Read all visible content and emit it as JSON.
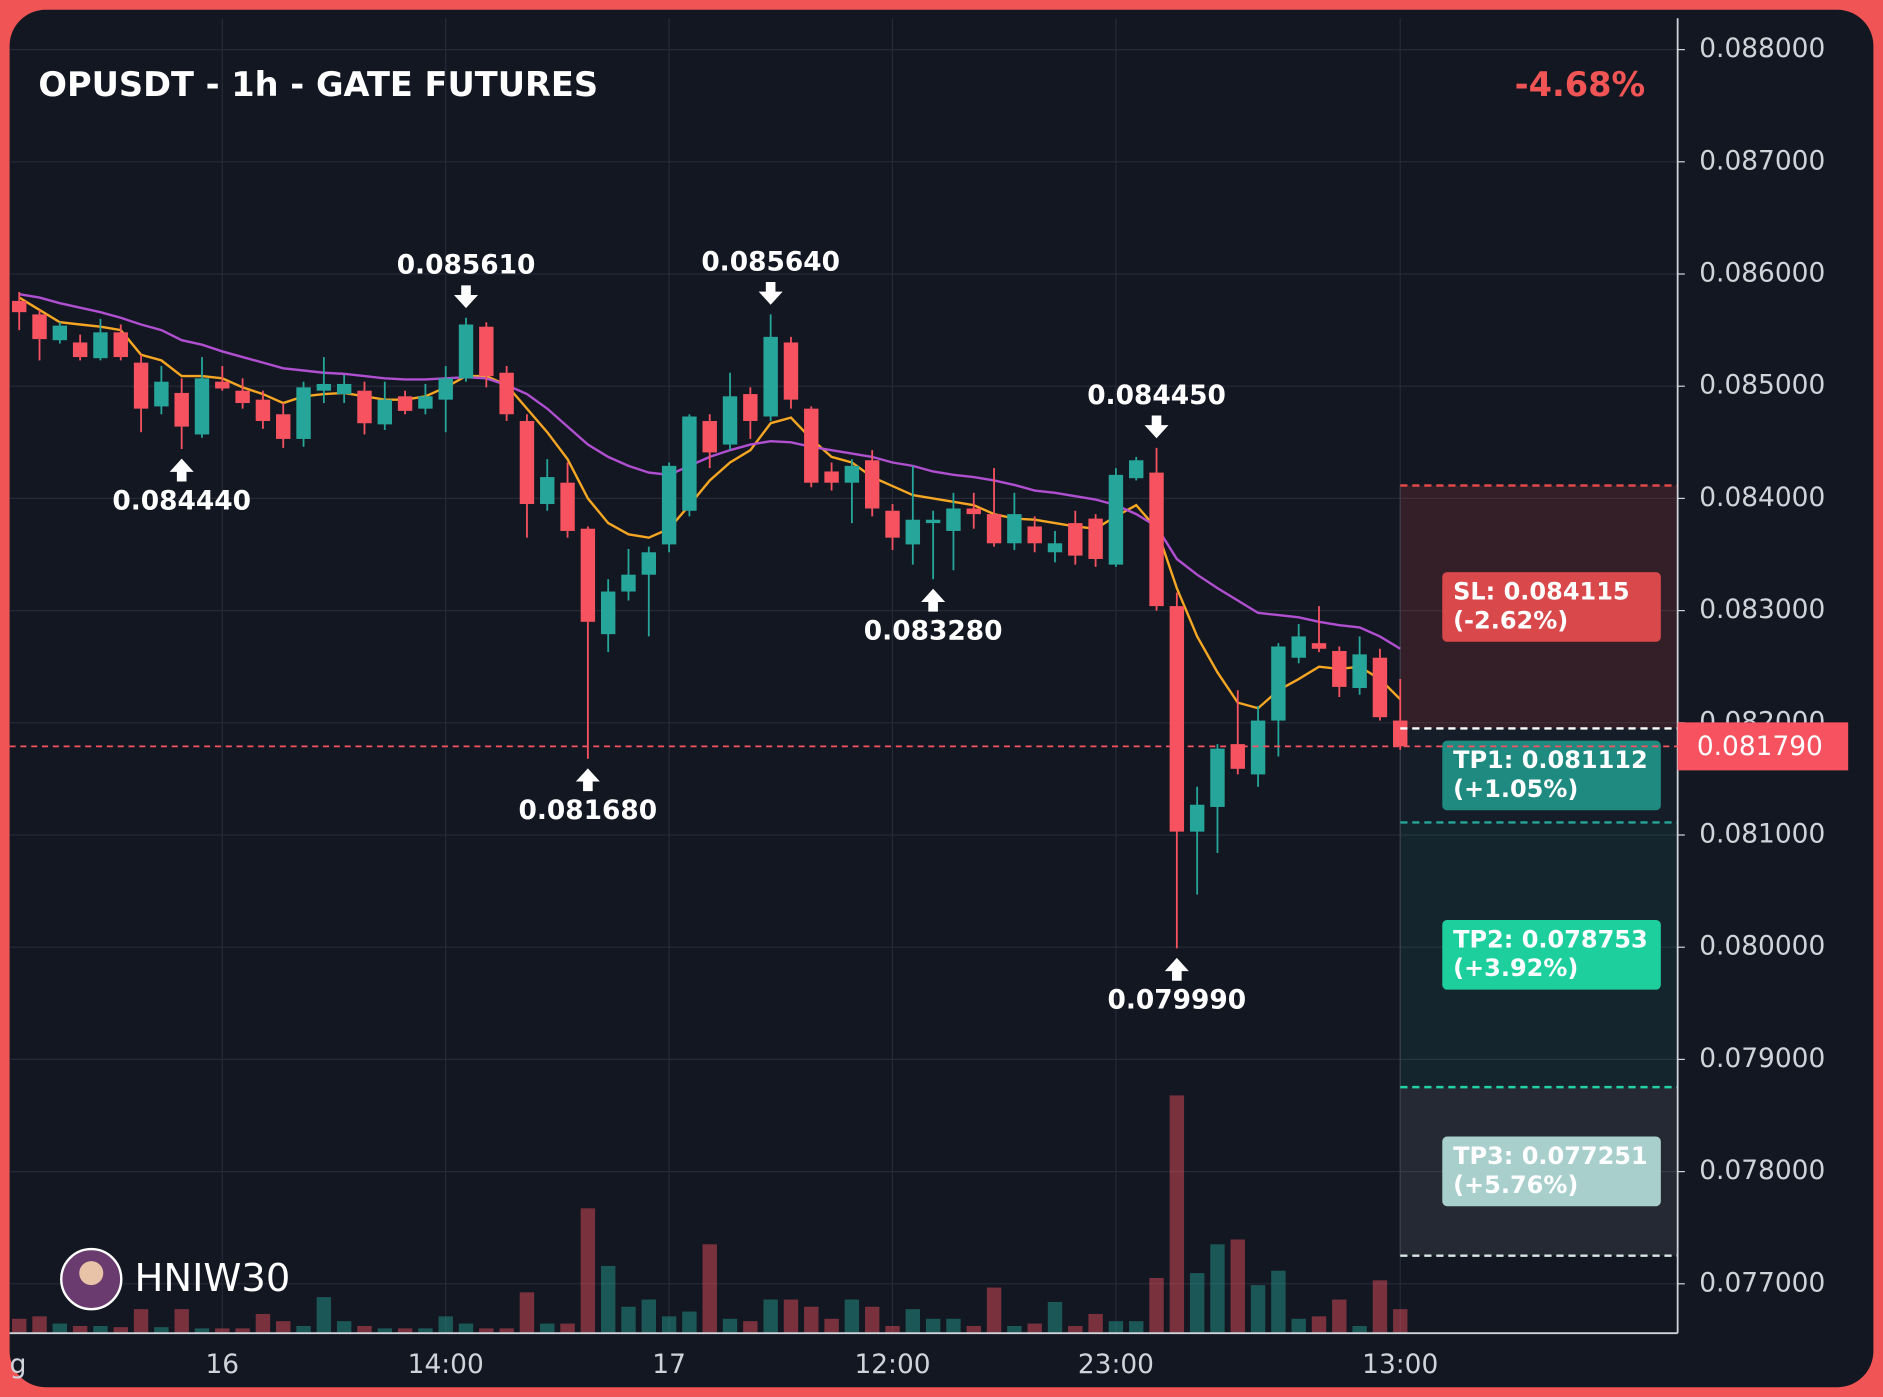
{
  "chart_data": {
    "type": "candlestick",
    "title": "OPUSDT - 1h - GATE FUTURES",
    "change_label": "-4.68%",
    "watermark": "HNIW30",
    "categories": [
      "g",
      null,
      null,
      null,
      null,
      null,
      null,
      null,
      null,
      null,
      "16",
      null,
      null,
      null,
      null,
      null,
      null,
      null,
      null,
      null,
      null,
      "14:00",
      null,
      null,
      null,
      null,
      null,
      null,
      null,
      null,
      null,
      null,
      "17",
      null,
      null,
      null,
      null,
      null,
      null,
      null,
      null,
      null,
      null,
      "12:00",
      null,
      null,
      null,
      null,
      null,
      null,
      null,
      null,
      null,
      null,
      "23:00",
      null,
      null,
      null,
      null,
      null,
      null,
      null,
      null,
      null,
      null,
      null,
      null,
      null,
      "13:00"
    ],
    "open": [
      0.08576,
      0.08564,
      0.08541,
      0.08539,
      0.08525,
      0.08548,
      0.08521,
      0.08482,
      0.08494,
      0.08457,
      0.08504,
      0.08496,
      0.08488,
      0.08475,
      0.08453,
      0.08496,
      0.08493,
      0.08496,
      0.08466,
      0.08491,
      0.0848,
      0.08488,
      0.08507,
      0.08553,
      0.08512,
      0.08469,
      0.08395,
      0.08414,
      0.08373,
      0.08279,
      0.08317,
      0.08332,
      0.08359,
      0.08389,
      0.08469,
      0.08448,
      0.08493,
      0.08473,
      0.08539,
      0.0848,
      0.08424,
      0.08414,
      0.08434,
      0.08389,
      0.08359,
      0.08378,
      0.08371,
      0.08391,
      0.08386,
      0.0836,
      0.08375,
      0.08352,
      0.08378,
      0.08382,
      0.08341,
      0.08418,
      0.08423,
      0.08304,
      0.08103,
      0.08125,
      0.08181,
      0.08154,
      0.08202,
      0.08258,
      0.08271,
      0.08264,
      0.08231,
      0.08258,
      0.08202
    ],
    "high": [
      0.08584,
      0.08568,
      0.08557,
      0.08546,
      0.0856,
      0.08555,
      0.08528,
      0.08518,
      0.08507,
      0.08526,
      0.08518,
      0.08507,
      0.08496,
      0.08485,
      0.08504,
      0.08526,
      0.0851,
      0.08504,
      0.08504,
      0.08496,
      0.08502,
      0.08518,
      0.08561,
      0.08557,
      0.08518,
      0.08475,
      0.08435,
      0.08432,
      0.08375,
      0.08328,
      0.08355,
      0.08357,
      0.08432,
      0.08475,
      0.08475,
      0.08512,
      0.08499,
      0.08564,
      0.08544,
      0.08482,
      0.08432,
      0.08435,
      0.08443,
      0.08395,
      0.08429,
      0.08389,
      0.08405,
      0.08405,
      0.08427,
      0.08405,
      0.08384,
      0.08371,
      0.08389,
      0.08386,
      0.08427,
      0.08437,
      0.08445,
      0.08316,
      0.08143,
      0.08181,
      0.08229,
      0.08215,
      0.08271,
      0.08288,
      0.08304,
      0.08268,
      0.08277,
      0.08266,
      0.08239
    ],
    "low": [
      0.0855,
      0.08523,
      0.08538,
      0.08523,
      0.08523,
      0.08523,
      0.08459,
      0.08475,
      0.08444,
      0.08454,
      0.08496,
      0.0848,
      0.08462,
      0.08445,
      0.08446,
      0.08485,
      0.08485,
      0.08457,
      0.08461,
      0.08475,
      0.08475,
      0.08459,
      0.08504,
      0.08499,
      0.08469,
      0.08365,
      0.08389,
      0.08365,
      0.08168,
      0.08263,
      0.08309,
      0.08277,
      0.08352,
      0.08384,
      0.08427,
      0.08443,
      0.08453,
      0.08469,
      0.0848,
      0.0841,
      0.08407,
      0.08378,
      0.08384,
      0.08354,
      0.08341,
      0.08328,
      0.08336,
      0.08373,
      0.08357,
      0.08354,
      0.08352,
      0.08343,
      0.08341,
      0.08339,
      0.08339,
      0.08416,
      0.083,
      0.07999,
      0.08047,
      0.08084,
      0.08154,
      0.08143,
      0.0817,
      0.08253,
      0.08263,
      0.08223,
      0.08225,
      0.08202,
      0.08176
    ],
    "close": [
      0.08566,
      0.08542,
      0.08554,
      0.08526,
      0.08548,
      0.08526,
      0.0848,
      0.08504,
      0.08464,
      0.08507,
      0.08498,
      0.08485,
      0.08469,
      0.08453,
      0.08499,
      0.08502,
      0.08502,
      0.08467,
      0.08488,
      0.08478,
      0.08491,
      0.08507,
      0.08555,
      0.08509,
      0.08475,
      0.08395,
      0.08419,
      0.08371,
      0.0829,
      0.08317,
      0.08332,
      0.08352,
      0.08429,
      0.08473,
      0.08441,
      0.08491,
      0.08469,
      0.08544,
      0.08488,
      0.08414,
      0.08414,
      0.08429,
      0.08391,
      0.08365,
      0.08381,
      0.08381,
      0.08391,
      0.08386,
      0.0836,
      0.08386,
      0.0836,
      0.0836,
      0.08349,
      0.08346,
      0.08421,
      0.08434,
      0.08304,
      0.08103,
      0.08127,
      0.08177,
      0.08159,
      0.08202,
      0.08268,
      0.08277,
      0.08266,
      0.08232,
      0.08261,
      0.08205,
      0.08179
    ],
    "volume": [
      12,
      14,
      8,
      6,
      6,
      5,
      20,
      5,
      20,
      4,
      4,
      4,
      16,
      10,
      6,
      30,
      10,
      6,
      4,
      4,
      4,
      14,
      8,
      4,
      4,
      34,
      8,
      8,
      104,
      56,
      22,
      28,
      14,
      18,
      74,
      12,
      10,
      28,
      28,
      22,
      12,
      28,
      22,
      6,
      20,
      12,
      12,
      6,
      38,
      6,
      8,
      26,
      6,
      16,
      10,
      10,
      46,
      198,
      50,
      74,
      78,
      40,
      52,
      12,
      14,
      28,
      6,
      44,
      20
    ],
    "up_color": "#26a69a",
    "down_color": "#f7525f",
    "moving_averages": [
      {
        "color": "#f5a623",
        "values": [
          0.08579,
          0.08568,
          0.08557,
          0.08555,
          0.08553,
          0.0855,
          0.08528,
          0.08523,
          0.08509,
          0.08509,
          0.08507,
          0.08499,
          0.08493,
          0.08485,
          0.08491,
          0.08493,
          0.08494,
          0.08491,
          0.08488,
          0.08488,
          0.08491,
          0.08499,
          0.08509,
          0.08509,
          0.08501,
          0.0848,
          0.08459,
          0.08435,
          0.084,
          0.08378,
          0.08368,
          0.08365,
          0.08373,
          0.08394,
          0.08416,
          0.08432,
          0.08443,
          0.08467,
          0.08472,
          0.08453,
          0.08437,
          0.08432,
          0.08419,
          0.08411,
          0.08403,
          0.084,
          0.08397,
          0.08394,
          0.08386,
          0.08382,
          0.08381,
          0.08378,
          0.08375,
          0.08373,
          0.08384,
          0.08394,
          0.08373,
          0.0832,
          0.08277,
          0.08245,
          0.08218,
          0.08213,
          0.08229,
          0.08239,
          0.0825,
          0.08248,
          0.0825,
          0.08239,
          0.08221
        ]
      },
      {
        "color": "#b04fd0",
        "values": [
          0.08582,
          0.08579,
          0.08574,
          0.0857,
          0.08566,
          0.08561,
          0.08555,
          0.0855,
          0.08541,
          0.08537,
          0.08531,
          0.08526,
          0.08521,
          0.08516,
          0.08514,
          0.08512,
          0.08511,
          0.08509,
          0.08507,
          0.08506,
          0.08506,
          0.08507,
          0.08508,
          0.08507,
          0.08501,
          0.08493,
          0.0848,
          0.08464,
          0.08448,
          0.08437,
          0.08429,
          0.08423,
          0.08421,
          0.08429,
          0.08437,
          0.08443,
          0.08448,
          0.08451,
          0.0845,
          0.08446,
          0.08443,
          0.0844,
          0.08437,
          0.08432,
          0.08429,
          0.08424,
          0.08421,
          0.08419,
          0.08416,
          0.08412,
          0.08407,
          0.08405,
          0.08402,
          0.08399,
          0.08394,
          0.08386,
          0.08375,
          0.08346,
          0.08332,
          0.0832,
          0.08309,
          0.08298,
          0.08296,
          0.08294,
          0.0829,
          0.08287,
          0.08285,
          0.08277,
          0.08266
        ]
      }
    ],
    "ylim": [
      0.07656,
      0.08828
    ],
    "yticks": [
      {
        "value": 0.077,
        "label": "0.077000"
      },
      {
        "value": 0.078,
        "label": "0.078000"
      },
      {
        "value": 0.079,
        "label": "0.079000"
      },
      {
        "value": 0.08,
        "label": "0.080000"
      },
      {
        "value": 0.081,
        "label": "0.081000"
      },
      {
        "value": 0.082,
        "label": "0.082000"
      },
      {
        "value": 0.083,
        "label": "0.083000"
      },
      {
        "value": 0.084,
        "label": "0.084000"
      },
      {
        "value": 0.085,
        "label": "0.085000"
      },
      {
        "value": 0.086,
        "label": "0.086000"
      },
      {
        "value": 0.087,
        "label": "0.087000"
      },
      {
        "value": 0.088,
        "label": "0.088000"
      }
    ],
    "grid": true,
    "annotations": [
      {
        "candle": 22,
        "kind": "high",
        "value": 0.08561,
        "label": "0.085610"
      },
      {
        "candle": 37,
        "kind": "high",
        "value": 0.08564,
        "label": "0.085640"
      },
      {
        "candle": 56,
        "kind": "high",
        "value": 0.08445,
        "label": "0.084450"
      },
      {
        "candle": 8,
        "kind": "low",
        "value": 0.08444,
        "label": "0.084440"
      },
      {
        "candle": 28,
        "kind": "low",
        "value": 0.08168,
        "label": "0.081680"
      },
      {
        "candle": 45,
        "kind": "low",
        "value": 0.08328,
        "label": "0.083280"
      },
      {
        "candle": 57,
        "kind": "low",
        "value": 0.07999,
        "label": "0.079990"
      }
    ],
    "entry": 0.08195,
    "levels": [
      {
        "value": 0.084115,
        "label": "SL: 0.084115",
        "change": "(-2.62%)",
        "color": "#d9484a",
        "line_color": "#e0484a",
        "zone": "rgba(239,83,80,0.15)"
      },
      {
        "value": 0.081112,
        "label": "TP1: 0.081112",
        "change": "(+1.05%)",
        "color": "#1e8a80",
        "line_color": "#26a69a",
        "zone": "rgba(38,166,154,0.05)"
      },
      {
        "value": 0.078753,
        "label": "TP2: 0.078753",
        "change": "(+3.92%)",
        "color": "#1ecf9e",
        "line_color": "#22d3a6",
        "zone": "rgba(38,166,154,0.1)"
      },
      {
        "value": 0.077251,
        "label": "TP3: 0.077251",
        "change": "(+5.76%)",
        "color": "#a8cfcc",
        "line_color": "#d8e6e6",
        "zone": "rgba(255,255,255,0.08)"
      }
    ],
    "last_price": {
      "value": 0.08179,
      "label": "0.081790"
    }
  }
}
